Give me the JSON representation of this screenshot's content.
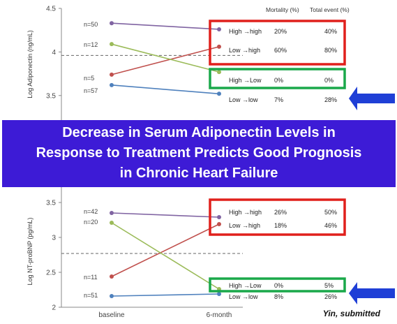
{
  "banner": {
    "line1": "Decrease in Serum Adiponectin Levels in",
    "line2": "Response to Treatment Predicts Good Prognosis",
    "line3": "in Chronic Heart Failure"
  },
  "credit": "Yin, submitted",
  "colors": {
    "purple": "#8064a2",
    "red": "#c0504d",
    "green": "#9bbb59",
    "blue": "#4f81bd",
    "redbox": "#e0201c",
    "greenbox": "#1aa84a",
    "arrow": "#1f3fd6",
    "banner": "#3d1bd6"
  },
  "chart_data": [
    {
      "type": "line",
      "ylabel": "Log Adiponectin (ng/mL)",
      "ylim": [
        3.25,
        4.5
      ],
      "yticks": [
        "4.5",
        "4",
        "3.5"
      ],
      "ytick_values": [
        4.5,
        4.0,
        3.5
      ],
      "reference_line": 3.96,
      "categories": [
        "baseline",
        "6-month"
      ],
      "table_headers": [
        "Mortality (%)",
        "Total event (%)"
      ],
      "series": [
        {
          "name": "High →high",
          "n_label": "n=50",
          "values": [
            4.33,
            4.26
          ],
          "color": "purple",
          "mortality": "20%",
          "total_event": "40%"
        },
        {
          "name": "Low →high",
          "n_label": "n=12",
          "values": [
            3.74,
            4.06
          ],
          "color": "red",
          "mortality": "60%",
          "total_event": "80%"
        },
        {
          "name": "High →Low",
          "n_label": "n=5",
          "values": [
            4.09,
            3.77
          ],
          "color": "green",
          "mortality": "0%",
          "total_event": "0%"
        },
        {
          "name": "Low →low",
          "n_label": "n=57",
          "values": [
            3.62,
            3.52
          ],
          "color": "blue",
          "mortality": "7%",
          "total_event": "28%"
        }
      ],
      "n_label_order": [
        "n=50",
        "n=12",
        "n=5",
        "n=57"
      ]
    },
    {
      "type": "line",
      "ylabel": "Log NT-proBNP (pg/mL)",
      "ylim": [
        2.0,
        3.5
      ],
      "yticks": [
        "3.5",
        "3",
        "2.5",
        "2"
      ],
      "ytick_values": [
        3.5,
        3.0,
        2.5,
        2.0
      ],
      "reference_line": 2.77,
      "categories": [
        "baseline",
        "6-month"
      ],
      "series": [
        {
          "name": "High →high",
          "n_label": "n=42",
          "values": [
            3.35,
            3.29
          ],
          "color": "purple",
          "mortality": "26%",
          "total_event": "50%"
        },
        {
          "name": "Low →high",
          "n_label": "n=11",
          "values": [
            2.44,
            3.19
          ],
          "color": "red",
          "mortality": "18%",
          "total_event": "46%"
        },
        {
          "name": "High →Low",
          "n_label": "n=20",
          "values": [
            3.21,
            2.26
          ],
          "color": "green",
          "mortality": "0%",
          "total_event": "5%"
        },
        {
          "name": "Low →low",
          "n_label": "n=51",
          "values": [
            2.16,
            2.19
          ],
          "color": "blue",
          "mortality": "8%",
          "total_event": "26%"
        }
      ],
      "n_label_order": [
        "n=42",
        "n=20",
        "n=11",
        "n=51"
      ]
    }
  ]
}
